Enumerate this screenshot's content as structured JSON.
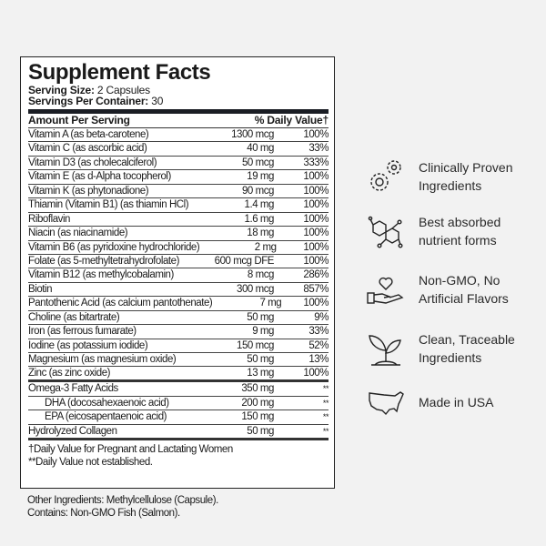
{
  "panel": {
    "title": "Supplement Facts",
    "serving_size_label": "Serving Size:",
    "serving_size": " 2 Capsules",
    "servings_label": "Servings Per Container:",
    "servings": " 30",
    "header_amount": "Amount Per Serving",
    "header_dv": "% Daily Value†",
    "rows": [
      {
        "name": "Vitamin A (as beta-carotene)",
        "amount": "1300 mcg",
        "dv": "100%"
      },
      {
        "name": "Vitamin C (as ascorbic acid)",
        "amount": "40 mg",
        "dv": "33%"
      },
      {
        "name": "Vitamin D3 (as cholecalciferol)",
        "amount": "50 mcg",
        "dv": "333%"
      },
      {
        "name": "Vitamin E (as d-Alpha tocopherol)",
        "amount": "19 mg",
        "dv": "100%"
      },
      {
        "name": "Vitamin K (as phytonadione)",
        "amount": "90 mcg",
        "dv": "100%"
      },
      {
        "name": "Thiamin (Vitamin B1) (as thiamin HCl)",
        "amount": "1.4 mg",
        "dv": "100%"
      },
      {
        "name": "Riboflavin",
        "amount": "1.6 mg",
        "dv": "100%"
      },
      {
        "name": "Niacin (as niacinamide)",
        "amount": "18 mg",
        "dv": "100%"
      },
      {
        "name": "Vitamin B6 (as pyridoxine hydrochloride)",
        "amount": "2 mg",
        "dv": "100%"
      },
      {
        "name": "Folate (as 5-methyltetrahydrofolate)",
        "amount": "600 mcg DFE",
        "dv": "100%"
      },
      {
        "name": "Vitamin B12 (as methylcobalamin)",
        "amount": "8 mcg",
        "dv": "286%"
      },
      {
        "name": "Biotin",
        "amount": "300 mcg",
        "dv": "857%"
      },
      {
        "name": "Pantothenic Acid (as calcium pantothenate)",
        "amount": "7 mg",
        "dv": "100%"
      },
      {
        "name": "Choline (as bitartrate)",
        "amount": "50 mg",
        "dv": "9%"
      },
      {
        "name": "Iron (as ferrous fumarate)",
        "amount": "9 mg",
        "dv": "33%"
      },
      {
        "name": "Iodine (as potassium iodide)",
        "amount": "150 mcg",
        "dv": "52%"
      },
      {
        "name": "Magnesium (as magnesium oxide)",
        "amount": "50 mg",
        "dv": "13%"
      },
      {
        "name": "Zinc (as zinc oxide)",
        "amount": "13 mg",
        "dv": "100%"
      }
    ],
    "other_rows": [
      {
        "name": "Omega-3 Fatty Acids",
        "amount": "350 mg",
        "dv": "**"
      },
      {
        "name": "DHA (docosahexaenoic acid)",
        "amount": "200 mg",
        "dv": "**"
      },
      {
        "name": "EPA (eicosapentaenoic acid)",
        "amount": "150 mg",
        "dv": "**"
      },
      {
        "name": "Hydrolyzed Collagen",
        "amount": "50 mg",
        "dv": "**"
      }
    ],
    "footnote1": "†Daily Value for Pregnant and Lactating Women",
    "footnote2": "**Daily Value not established."
  },
  "other_ingredients": "Other Ingredients: Methylcellulose (Capsule).",
  "contains": "Contains: Non-GMO Fish (Salmon).",
  "features": [
    {
      "icon": "gears-icon",
      "line1": "Clinically Proven",
      "line2": "Ingredients"
    },
    {
      "icon": "molecule-icon",
      "line1": "Best absorbed",
      "line2": "nutrient forms"
    },
    {
      "icon": "hand-heart-icon",
      "line1": "Non-GMO, No",
      "line2": "Artificial Flavors"
    },
    {
      "icon": "sprout-icon",
      "line1": "Clean, Traceable",
      "line2": "Ingredients"
    },
    {
      "icon": "usa-map-icon",
      "line1": "Made in USA",
      "line2": ""
    }
  ]
}
